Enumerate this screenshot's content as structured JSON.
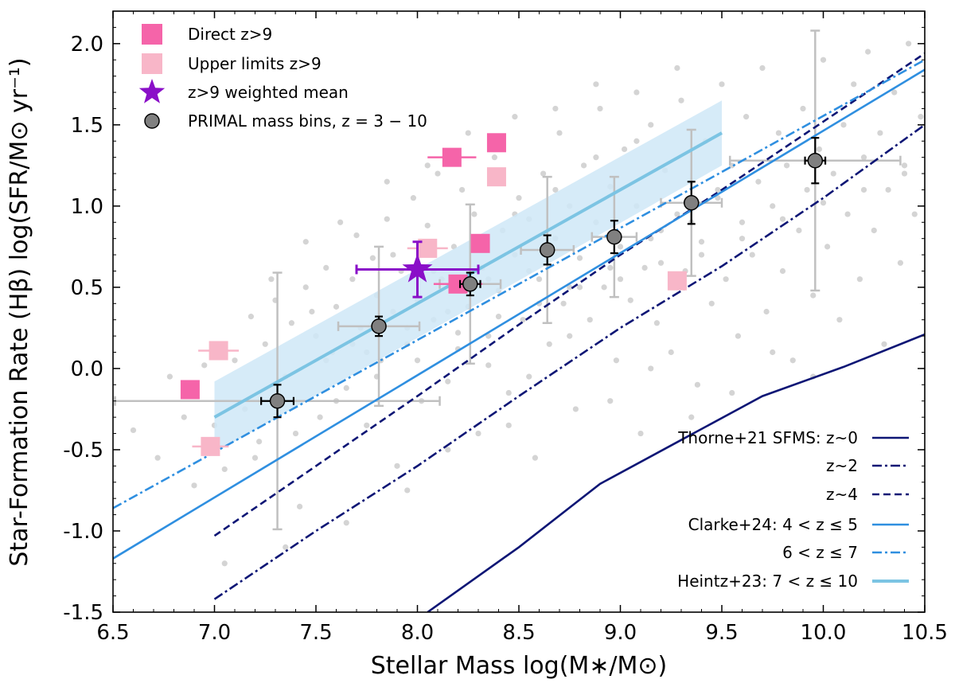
{
  "chart_data": {
    "type": "scatter",
    "xlabel": "Stellar Mass log(M∗/M⊙)",
    "ylabel": "Star-Formation Rate (Hβ) log(SFR/M⊙ yr⁻¹)",
    "xlim": [
      6.5,
      10.5
    ],
    "ylim": [
      -1.5,
      2.2
    ],
    "x_ticks": [
      "6.5",
      "7.0",
      "7.5",
      "8.0",
      "8.5",
      "9.0",
      "9.5",
      "10.0",
      "10.5"
    ],
    "y_ticks": [
      "-1.5",
      "-1.0",
      "-0.5",
      "0.0",
      "0.5",
      "1.0",
      "1.5",
      "2.0"
    ],
    "colors": {
      "background_points": "#cccccc",
      "direct": "#f564a9",
      "upper": "#f8b6c8",
      "star": "#8a0fc8",
      "primal": "#808080",
      "thorne": "#0d1675",
      "clarke": "#2f8fe0",
      "heintz": "#7cc4e3",
      "heintz_band": "#cfe8f7"
    },
    "legend_upper_left": [
      {
        "label": "Direct z>9",
        "marker": "square",
        "color": "#f564a9"
      },
      {
        "label": "Upper limits z>9",
        "marker": "square",
        "color": "#f8b6c8"
      },
      {
        "label": "z>9 weighted mean",
        "marker": "star",
        "color": "#8a0fc8"
      },
      {
        "label": "PRIMAL mass bins, z = 3 − 10",
        "marker": "circle",
        "color": "#808080"
      }
    ],
    "legend_lower_right": [
      {
        "label": "Thorne+21 SFMS: z~0",
        "style": "solid",
        "color": "#0d1675"
      },
      {
        "label": "z~2",
        "style": "dashdot",
        "color": "#0d1675"
      },
      {
        "label": "z~4",
        "style": "dashed",
        "color": "#0d1675"
      },
      {
        "label": "Clarke+24: 4 < z ≤ 5",
        "style": "solid",
        "color": "#2f8fe0"
      },
      {
        "label": "6 < z ≤ 7",
        "style": "dashdot",
        "color": "#2f8fe0"
      },
      {
        "label": "Heintz+23: 7 < z ≤ 10",
        "style": "solid_thick",
        "color": "#7cc4e3"
      }
    ],
    "series": [
      {
        "name": "Thorne+21 SFMS: z~0",
        "x": [
          8.05,
          8.5,
          8.9,
          9.3,
          9.7,
          10.1,
          10.5
        ],
        "y": [
          -1.5,
          -1.1,
          -0.71,
          -0.44,
          -0.17,
          0.01,
          0.21
        ]
      },
      {
        "name": "z~2",
        "x": [
          7.0,
          7.5,
          8.0,
          8.5,
          9.0,
          9.5,
          10.0,
          10.5
        ],
        "y": [
          -1.42,
          -1.0,
          -0.6,
          -0.17,
          0.25,
          0.63,
          1.05,
          1.5
        ]
      },
      {
        "name": "z~4",
        "x": [
          7.0,
          7.5,
          8.0,
          8.5,
          9.0,
          9.5,
          10.0,
          10.5
        ],
        "y": [
          -1.03,
          -0.6,
          -0.17,
          0.27,
          0.7,
          1.1,
          1.52,
          1.94
        ]
      },
      {
        "name": "Clarke+24: 4<z≤5",
        "x": [
          6.5,
          10.5
        ],
        "y": [
          -1.17,
          1.84
        ]
      },
      {
        "name": "6<z≤7",
        "x": [
          6.5,
          10.5
        ],
        "y": [
          -0.86,
          1.9
        ]
      },
      {
        "name": "Heintz+23: 7<z≤10",
        "x": [
          7.0,
          9.5
        ],
        "y": [
          -0.3,
          1.45
        ]
      },
      {
        "name": "Heintz+23 band upper",
        "x": [
          7.0,
          9.5
        ],
        "y": [
          -0.08,
          1.65
        ]
      },
      {
        "name": "Heintz+23 band lower",
        "x": [
          7.0,
          9.5
        ],
        "y": [
          -0.52,
          1.25
        ]
      }
    ],
    "direct_z9": [
      {
        "x": 6.88,
        "y": -0.13,
        "xerr": 0.0
      },
      {
        "x": 8.17,
        "y": 1.3,
        "xerr": 0.12
      },
      {
        "x": 8.39,
        "y": 1.39,
        "xerr": 0.0
      },
      {
        "x": 8.31,
        "y": 0.77,
        "xerr": 0.0
      },
      {
        "x": 8.2,
        "y": 0.52,
        "xerr": 0.12
      }
    ],
    "upper_limits_z9": [
      {
        "x": 7.02,
        "y": 0.11,
        "xerr": 0.1
      },
      {
        "x": 6.98,
        "y": -0.48,
        "xerr": 0.09
      },
      {
        "x": 8.05,
        "y": 0.74,
        "xerr": 0.1
      },
      {
        "x": 8.39,
        "y": 1.18,
        "xerr": 0.0
      },
      {
        "x": 9.28,
        "y": 0.54,
        "xerr": 0.0
      }
    ],
    "weighted_mean_z9": {
      "x": 8.0,
      "y": 0.61,
      "xerr": 0.3,
      "yerr": 0.17
    },
    "primal_bins": [
      {
        "x": 7.31,
        "y": -0.2,
        "xerr_small": 0.08,
        "yerr_small": 0.1,
        "xerr_big": 0.8,
        "yerr_big": 0.79
      },
      {
        "x": 7.81,
        "y": 0.26,
        "xerr_small": 0.0,
        "yerr_small": 0.06,
        "xerr_big": 0.2,
        "yerr_big": 0.49
      },
      {
        "x": 8.26,
        "y": 0.52,
        "xerr_small": 0.05,
        "yerr_small": 0.07,
        "xerr_big": 0.15,
        "yerr_big": 0.49
      },
      {
        "x": 8.64,
        "y": 0.73,
        "xerr_small": 0.0,
        "yerr_small": 0.09,
        "xerr_big": 0.13,
        "yerr_big": 0.45
      },
      {
        "x": 8.97,
        "y": 0.81,
        "xerr_small": 0.0,
        "yerr_small": 0.1,
        "xerr_big": 0.11,
        "yerr_big": 0.37
      },
      {
        "x": 9.35,
        "y": 1.02,
        "xerr_small": 0.0,
        "yerr_small": 0.13,
        "xerr_big": 0.15,
        "yerr_big": 0.45
      },
      {
        "x": 9.96,
        "y": 1.28,
        "xerr_small": 0.05,
        "yerr_small": 0.14,
        "xerr_big": 0.42,
        "yerr_big": 0.8
      }
    ],
    "background_points": [
      [
        6.6,
        -0.38
      ],
      [
        6.72,
        -0.55
      ],
      [
        6.85,
        -0.3
      ],
      [
        6.9,
        -0.72
      ],
      [
        6.95,
        0.02
      ],
      [
        7.05,
        -0.62
      ],
      [
        7.1,
        0.05
      ],
      [
        7.15,
        -0.25
      ],
      [
        7.18,
        0.32
      ],
      [
        7.22,
        -0.45
      ],
      [
        7.25,
        0.15
      ],
      [
        7.3,
        0.42
      ],
      [
        7.35,
        -0.05
      ],
      [
        7.38,
        0.28
      ],
      [
        7.42,
        -0.85
      ],
      [
        7.45,
        0.5
      ],
      [
        7.5,
        0.2
      ],
      [
        7.52,
        -0.3
      ],
      [
        7.55,
        0.62
      ],
      [
        7.58,
        0.1
      ],
      [
        7.6,
        0.38
      ],
      [
        7.65,
        -0.12
      ],
      [
        7.68,
        0.55
      ],
      [
        7.7,
        0.82
      ],
      [
        7.72,
        0.25
      ],
      [
        7.75,
        -0.35
      ],
      [
        7.78,
        0.68
      ],
      [
        7.8,
        0.45
      ],
      [
        7.82,
        0.05
      ],
      [
        7.85,
        0.92
      ],
      [
        7.88,
        0.35
      ],
      [
        7.9,
        -0.6
      ],
      [
        7.92,
        0.6
      ],
      [
        7.95,
        0.15
      ],
      [
        7.98,
        1.05
      ],
      [
        8.0,
        0.42
      ],
      [
        8.02,
        -0.2
      ],
      [
        8.05,
        0.88
      ],
      [
        8.08,
        0.3
      ],
      [
        8.1,
        1.2
      ],
      [
        8.12,
        0.55
      ],
      [
        8.15,
        -0.08
      ],
      [
        8.18,
        0.75
      ],
      [
        8.2,
        0.12
      ],
      [
        8.22,
        1.1
      ],
      [
        8.25,
        0.38
      ],
      [
        8.28,
        0.95
      ],
      [
        8.3,
        -0.4
      ],
      [
        8.32,
        0.62
      ],
      [
        8.35,
        0.2
      ],
      [
        8.38,
        1.3
      ],
      [
        8.4,
        0.48
      ],
      [
        8.42,
        0.85
      ],
      [
        8.45,
        -0.15
      ],
      [
        8.48,
        0.7
      ],
      [
        8.5,
        1.05
      ],
      [
        8.52,
        0.3
      ],
      [
        8.55,
        0.92
      ],
      [
        8.58,
        -0.55
      ],
      [
        8.6,
        0.55
      ],
      [
        8.62,
        1.2
      ],
      [
        8.65,
        0.15
      ],
      [
        8.68,
        0.8
      ],
      [
        8.7,
        1.45
      ],
      [
        8.72,
        0.4
      ],
      [
        8.75,
        1.0
      ],
      [
        8.78,
        -0.25
      ],
      [
        8.8,
        0.68
      ],
      [
        8.82,
        1.25
      ],
      [
        8.85,
        0.3
      ],
      [
        8.88,
        0.9
      ],
      [
        8.9,
        1.6
      ],
      [
        8.92,
        0.5
      ],
      [
        8.95,
        1.12
      ],
      [
        8.98,
        0.05
      ],
      [
        9.0,
        0.75
      ],
      [
        9.02,
        1.35
      ],
      [
        9.05,
        0.42
      ],
      [
        9.08,
        1.0
      ],
      [
        9.1,
        -0.4
      ],
      [
        9.12,
        0.62
      ],
      [
        9.15,
        1.5
      ],
      [
        9.18,
        0.28
      ],
      [
        9.2,
        0.85
      ],
      [
        9.22,
        1.22
      ],
      [
        9.25,
        0.1
      ],
      [
        9.28,
        0.95
      ],
      [
        9.3,
        1.65
      ],
      [
        9.32,
        0.6
      ],
      [
        9.35,
        1.15
      ],
      [
        9.38,
        -0.1
      ],
      [
        9.4,
        0.78
      ],
      [
        9.42,
        1.4
      ],
      [
        9.45,
        0.4
      ],
      [
        9.48,
        1.05
      ],
      [
        9.5,
        1.75
      ],
      [
        9.52,
        0.55
      ],
      [
        9.55,
        1.25
      ],
      [
        9.58,
        0.2
      ],
      [
        9.6,
        0.9
      ],
      [
        9.62,
        1.55
      ],
      [
        9.65,
        0.7
      ],
      [
        9.68,
        1.15
      ],
      [
        9.7,
        1.85
      ],
      [
        9.72,
        0.35
      ],
      [
        9.75,
        1.0
      ],
      [
        9.78,
        1.45
      ],
      [
        9.8,
        0.6
      ],
      [
        9.82,
        1.25
      ],
      [
        9.85,
        0.05
      ],
      [
        9.88,
        0.85
      ],
      [
        9.9,
        1.6
      ],
      [
        9.92,
        1.1
      ],
      [
        9.95,
        0.45
      ],
      [
        9.98,
        1.35
      ],
      [
        10.0,
        1.9
      ],
      [
        10.02,
        0.75
      ],
      [
        10.05,
        1.2
      ],
      [
        10.08,
        0.3
      ],
      [
        10.1,
        1.5
      ],
      [
        10.12,
        0.95
      ],
      [
        10.15,
        1.75
      ],
      [
        10.18,
        0.55
      ],
      [
        10.2,
        1.3
      ],
      [
        10.22,
        1.95
      ],
      [
        10.25,
        0.85
      ],
      [
        10.28,
        1.45
      ],
      [
        10.3,
        0.15
      ],
      [
        10.32,
        1.1
      ],
      [
        10.35,
        1.7
      ],
      [
        10.38,
        0.65
      ],
      [
        10.4,
        1.25
      ],
      [
        10.42,
        2.0
      ],
      [
        10.45,
        0.95
      ],
      [
        10.48,
        1.55
      ],
      [
        8.35,
        0.02
      ],
      [
        8.55,
        -0.05
      ],
      [
        8.75,
        0.2
      ],
      [
        8.95,
        -0.2
      ],
      [
        9.15,
        0.0
      ],
      [
        9.35,
        -0.3
      ],
      [
        9.55,
        -0.15
      ],
      [
        9.75,
        0.1
      ],
      [
        9.95,
        -0.05
      ],
      [
        8.15,
        -0.5
      ],
      [
        8.45,
        -0.35
      ],
      [
        7.95,
        -0.75
      ],
      [
        7.65,
        -0.95
      ],
      [
        7.35,
        -1.1
      ],
      [
        7.05,
        -1.2
      ],
      [
        7.45,
        0.78
      ],
      [
        7.62,
        0.9
      ],
      [
        7.85,
        1.15
      ],
      [
        8.05,
        1.25
      ],
      [
        8.25,
        1.45
      ],
      [
        8.48,
        1.55
      ],
      [
        8.68,
        1.6
      ],
      [
        8.88,
        1.75
      ],
      [
        9.08,
        1.7
      ],
      [
        9.28,
        1.85
      ],
      [
        7.55,
        0.05
      ],
      [
        7.75,
        0.1
      ],
      [
        7.95,
        0.25
      ],
      [
        8.15,
        0.35
      ],
      [
        8.35,
        0.55
      ],
      [
        8.55,
        0.6
      ],
      [
        8.75,
        0.5
      ],
      [
        8.95,
        0.62
      ],
      [
        9.15,
        0.8
      ],
      [
        9.35,
        0.9
      ],
      [
        6.78,
        -0.05
      ],
      [
        7.0,
        -0.35
      ],
      [
        7.2,
        -0.55
      ],
      [
        7.4,
        -0.4
      ],
      [
        7.6,
        -0.2
      ],
      [
        7.8,
        -0.05
      ],
      [
        8.0,
        0.05
      ],
      [
        8.2,
        0.22
      ],
      [
        8.4,
        0.32
      ],
      [
        8.6,
        0.4
      ],
      [
        8.8,
        0.5
      ],
      [
        9.0,
        0.55
      ],
      [
        9.2,
        0.65
      ],
      [
        9.4,
        0.7
      ],
      [
        9.6,
        0.8
      ],
      [
        9.8,
        0.92
      ],
      [
        10.0,
        1.02
      ],
      [
        10.2,
        1.1
      ],
      [
        10.4,
        1.2
      ],
      [
        7.28,
        0.55
      ],
      [
        7.48,
        0.35
      ],
      [
        7.68,
        0.15
      ],
      [
        7.88,
        0.7
      ],
      [
        8.08,
        0.6
      ],
      [
        8.28,
        0.8
      ],
      [
        8.48,
        0.95
      ],
      [
        8.68,
        1.1
      ],
      [
        8.88,
        1.3
      ],
      [
        9.08,
        1.4
      ],
      [
        9.48,
        1.1
      ]
    ]
  }
}
